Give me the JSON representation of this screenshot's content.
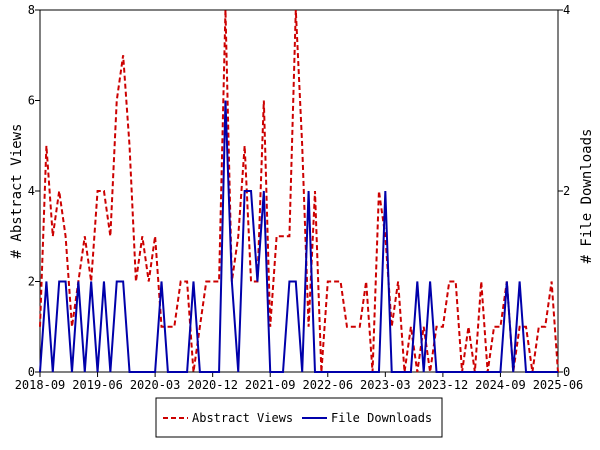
{
  "chart_data": {
    "type": "line",
    "title": "",
    "ylabel_left": "# Abstract Views",
    "ylabel_right": "# File Downloads",
    "x_tick_labels": [
      "2018-09",
      "2019-06",
      "2020-03",
      "2020-12",
      "2021-09",
      "2022-06",
      "2023-03",
      "2023-12",
      "2024-09",
      "2025-06"
    ],
    "x_range": [
      0,
      82
    ],
    "y_left_range": [
      0,
      8
    ],
    "y_left_ticks": [
      "0",
      "2",
      "4",
      "6",
      "8"
    ],
    "y_right_range": [
      0,
      4
    ],
    "y_right_ticks": [
      "0",
      "2",
      "4"
    ],
    "legend_position": "bottom",
    "colors": {
      "views": "#cc0000",
      "downloads": "#0000aa"
    },
    "series": [
      {
        "name": "Abstract Views",
        "axis": "left",
        "style": "dashed",
        "values": [
          1,
          5,
          3,
          4,
          3,
          1,
          2,
          3,
          2,
          4,
          4,
          3,
          6,
          7,
          5,
          2,
          3,
          2,
          3,
          1,
          1,
          1,
          2,
          2,
          0,
          1,
          2,
          2,
          2,
          8,
          2,
          3,
          5,
          2,
          2,
          6,
          1,
          3,
          3,
          3,
          8,
          5,
          1,
          4,
          0,
          2,
          2,
          2,
          1,
          1,
          1,
          2,
          0,
          4,
          3,
          1,
          2,
          0,
          1,
          0,
          1,
          0,
          1,
          1,
          2,
          2,
          0,
          1,
          0,
          2,
          0,
          1,
          1,
          2,
          0,
          1,
          1,
          0,
          1,
          1,
          2,
          0
        ]
      },
      {
        "name": "File Downloads",
        "axis": "right",
        "style": "solid",
        "values": [
          0,
          1,
          0,
          1,
          1,
          0,
          1,
          0,
          1,
          0,
          1,
          0,
          1,
          1,
          0,
          0,
          0,
          0,
          0,
          1,
          0,
          0,
          0,
          0,
          1,
          0,
          0,
          0,
          0,
          3,
          1,
          0,
          2,
          2,
          1,
          2,
          0,
          0,
          0,
          1,
          1,
          0,
          2,
          0,
          0,
          0,
          0,
          0,
          0,
          0,
          0,
          0,
          0,
          0,
          2,
          0,
          0,
          0,
          0,
          1,
          0,
          1,
          0,
          0,
          0,
          0,
          0,
          0,
          0,
          0,
          0,
          0,
          0,
          1,
          0,
          1,
          0,
          0,
          0,
          0,
          0,
          0
        ]
      }
    ]
  }
}
